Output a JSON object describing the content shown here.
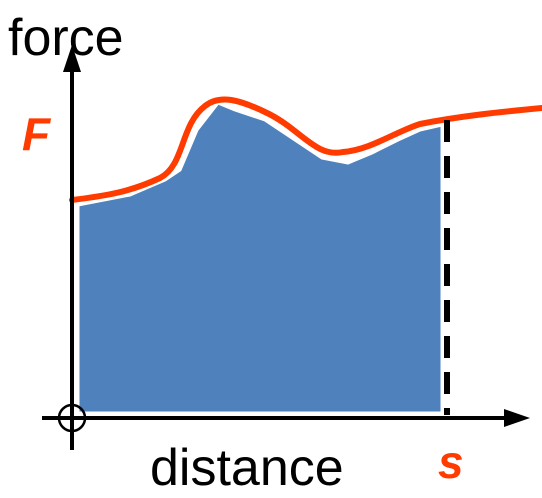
{
  "diagram": {
    "y_axis_label": "force",
    "x_axis_label": "distance",
    "force_marker_label": "F",
    "distance_marker_label": "s",
    "colors": {
      "area_fill": "#4f81bd",
      "curve": "#ff3b00",
      "marker_labels": "#ff3b00",
      "axes": "#000000",
      "dashed_line": "#000000",
      "background": "#ffffff"
    }
  }
}
